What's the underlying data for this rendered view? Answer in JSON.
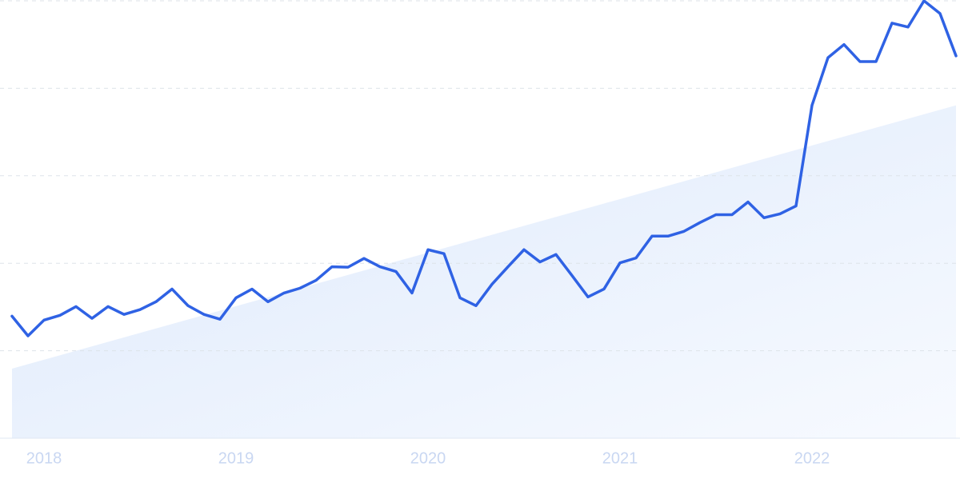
{
  "chart_data": {
    "type": "line",
    "categories": [
      null,
      null,
      "2018",
      null,
      null,
      null,
      null,
      null,
      null,
      null,
      null,
      null,
      null,
      null,
      "2019",
      null,
      null,
      null,
      null,
      null,
      null,
      null,
      null,
      null,
      null,
      null,
      "2020",
      null,
      null,
      null,
      null,
      null,
      null,
      null,
      null,
      null,
      null,
      null,
      "2021",
      null,
      null,
      null,
      null,
      null,
      null,
      null,
      null,
      null,
      null,
      null,
      "2022",
      null,
      null,
      null,
      null,
      null,
      null,
      null,
      null,
      null
    ],
    "series": [
      {
        "color": "#2f62e4",
        "values": [
          27.9,
          23.4,
          27.0,
          28.1,
          30.1,
          27.4,
          30.1,
          28.3,
          29.4,
          31.2,
          34.1,
          30.3,
          28.3,
          27.2,
          32.1,
          34.1,
          31.2,
          33.2,
          34.3,
          36.1,
          39.2,
          39.1,
          41.1,
          39.2,
          38.1,
          33.2,
          43.1,
          42.2,
          32.1,
          30.3,
          35.2,
          39.2,
          43.1,
          40.3,
          42.0,
          37.2,
          32.3,
          34.1,
          40.1,
          41.2,
          46.2,
          46.2,
          47.3,
          49.3,
          51.1,
          51.1,
          54.0,
          50.4,
          51.3,
          53.1,
          76.1,
          87.0,
          90.0,
          86.1,
          86.1,
          94.9,
          94.0,
          100,
          97.1,
          87.4
        ]
      }
    ],
    "trend": [
      15.9,
      76.1
    ],
    "ylim": [
      0,
      100
    ],
    "yticks": [
      0,
      20,
      40,
      60,
      80,
      100
    ],
    "grid": true
  }
}
